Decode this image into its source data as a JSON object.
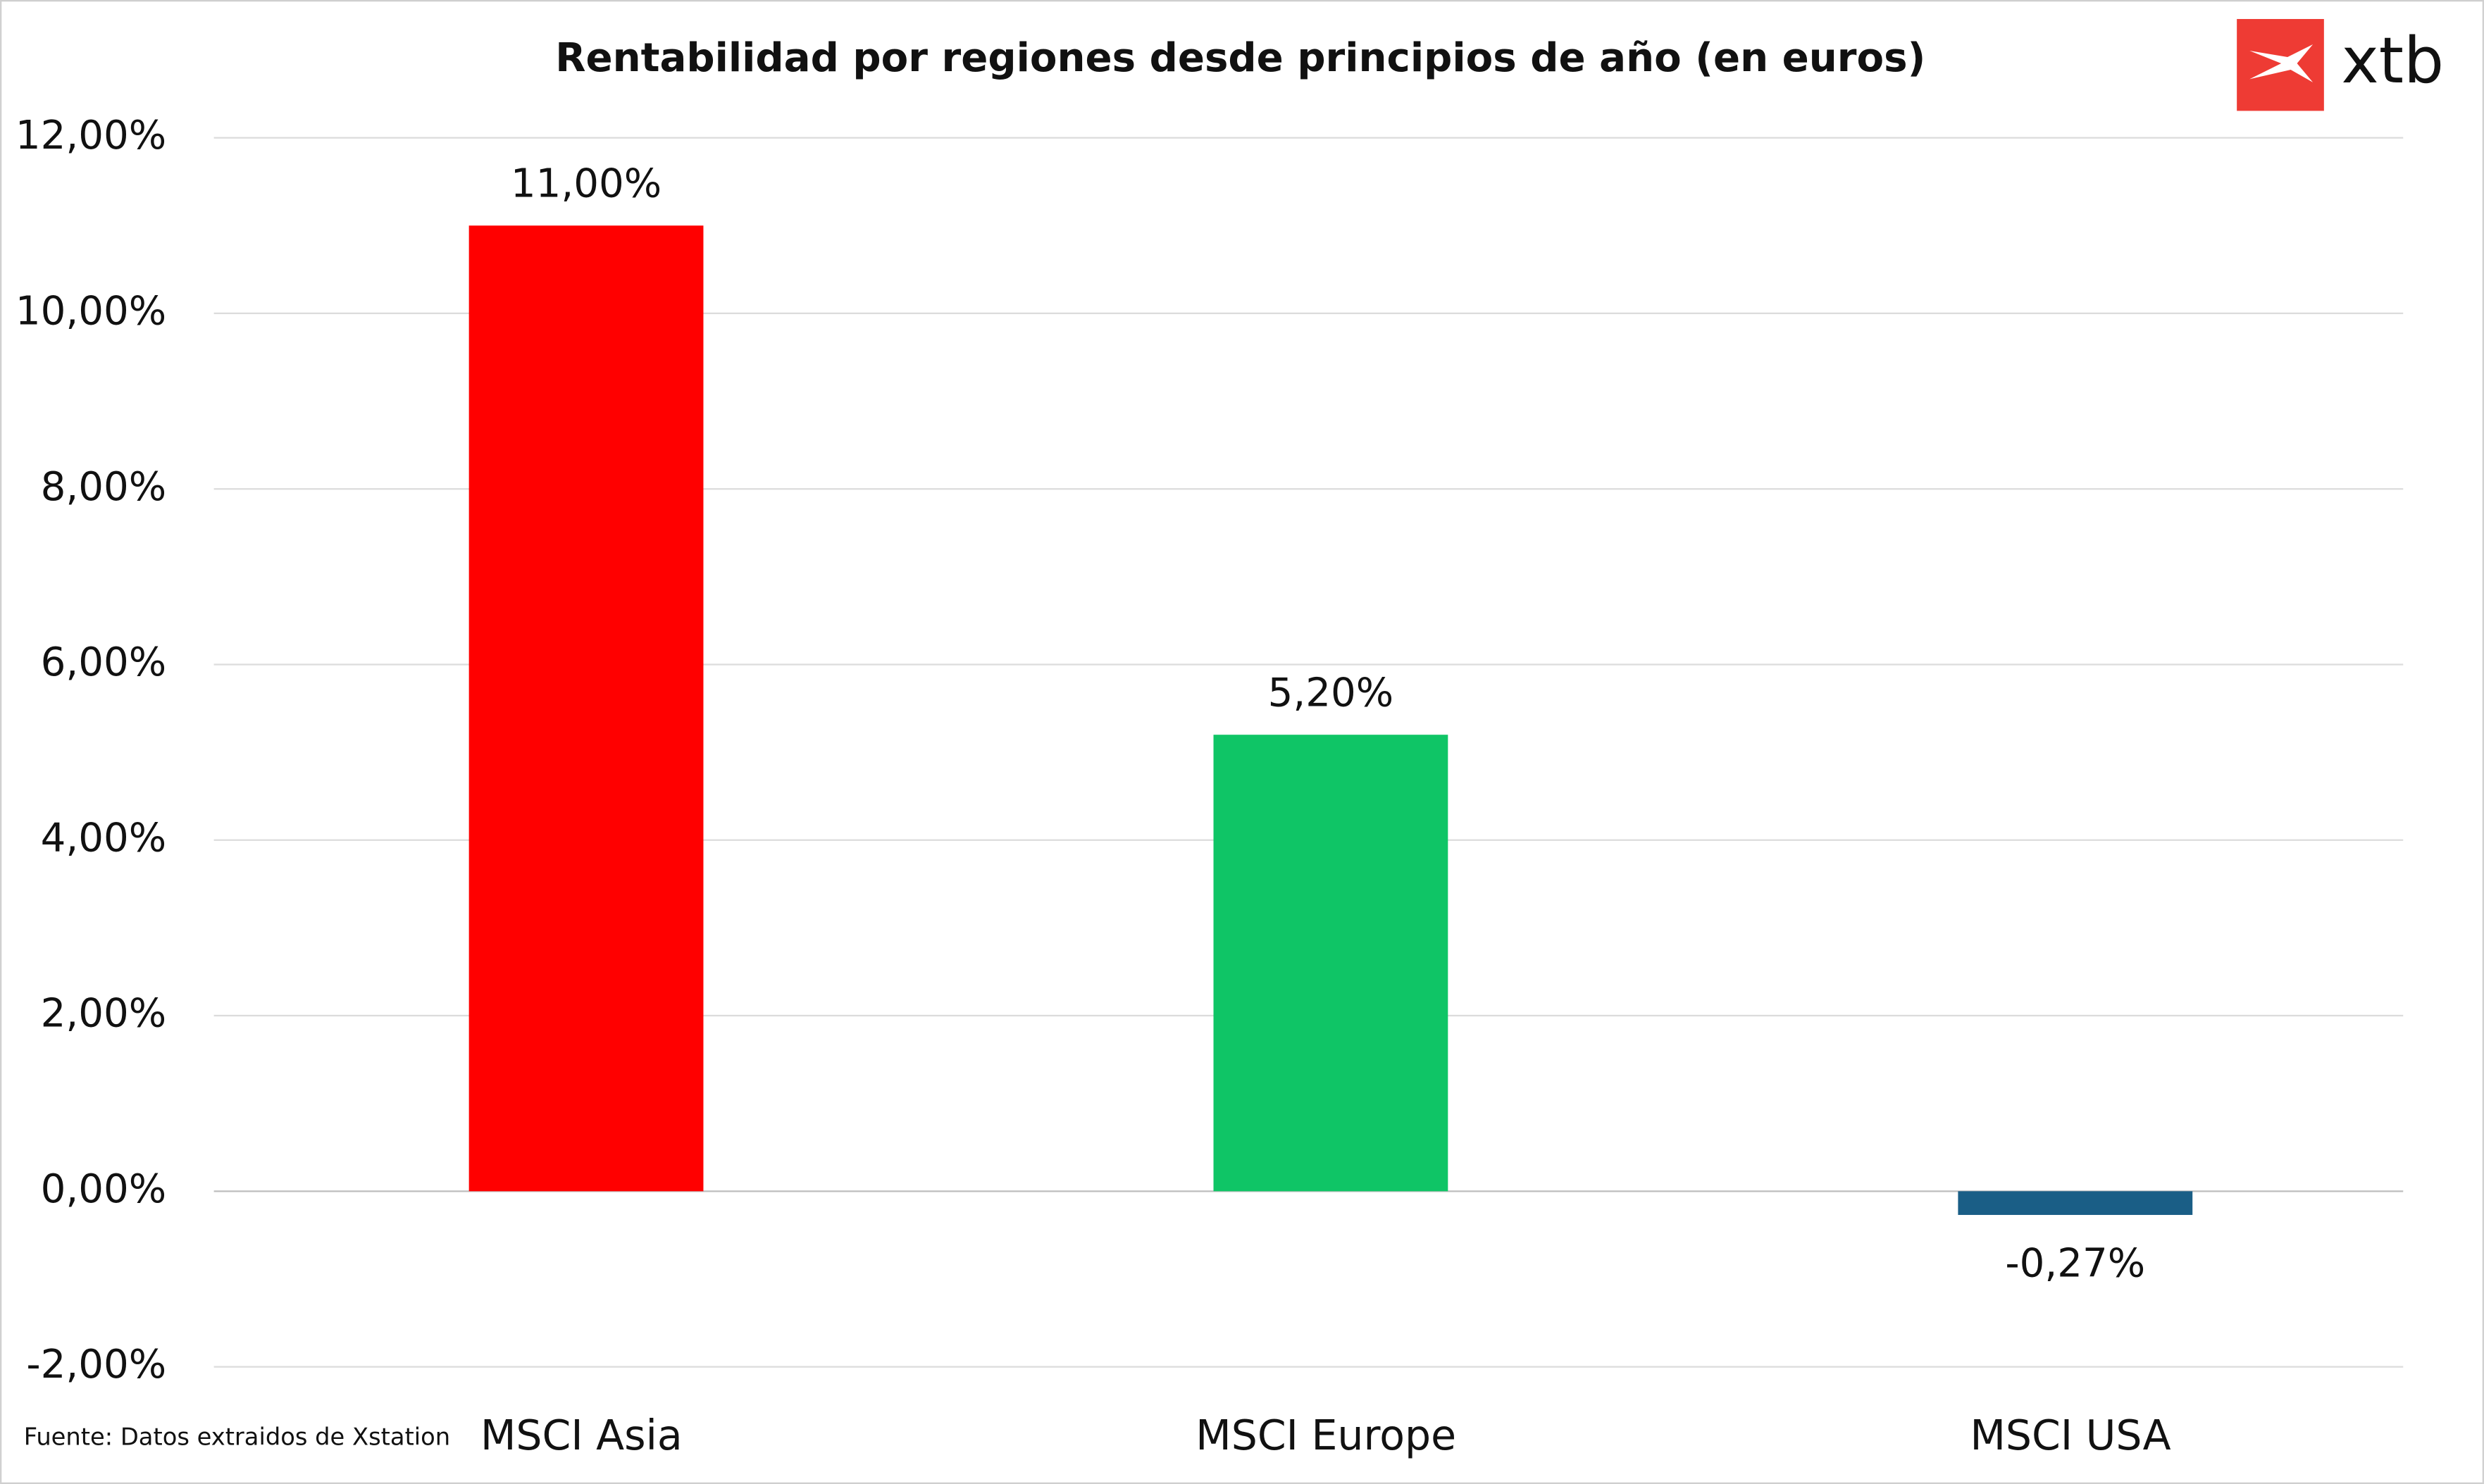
{
  "chart_data": {
    "type": "bar",
    "title": "Rentabilidad por regiones desde principios de año (en euros)",
    "categories": [
      "MSCI Asia",
      "MSCI Europe",
      "MSCI USA"
    ],
    "values": [
      11,
      5.2,
      -0.27
    ],
    "value_labels": [
      "11,00%",
      "5,20%",
      "-0,27%"
    ],
    "colors": [
      "#ff0000",
      "#0fc566",
      "#1a5e86"
    ],
    "ylim": [
      -2,
      12
    ],
    "yticks": [
      {
        "value": -2,
        "label": "-2,00%"
      },
      {
        "value": 0,
        "label": "0,00%"
      },
      {
        "value": 2,
        "label": "2,00%"
      },
      {
        "value": 4,
        "label": "4,00%"
      },
      {
        "value": 6,
        "label": "6,00%"
      },
      {
        "value": 8,
        "label": "8,00%"
      },
      {
        "value": 10,
        "label": "10,00%"
      },
      {
        "value": 12,
        "label": "12,00%"
      }
    ],
    "grid": true,
    "source": "Fuente: Datos extraidos de Xstation",
    "logo": "xtb"
  }
}
